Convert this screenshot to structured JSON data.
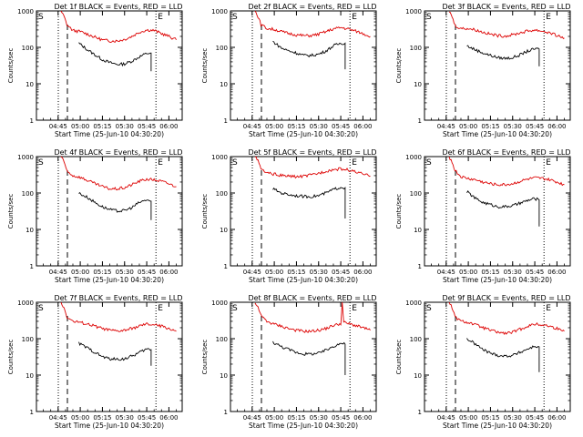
{
  "colors": {
    "events": "#000000",
    "lld": "#dd0000",
    "axis": "#000000",
    "background": "#ffffff"
  },
  "common": {
    "xlabel": "Start Time (25-Jun-10 04:30:20)",
    "ylabel": "Counts/sec",
    "x_ticks": [
      "04:45",
      "05:00",
      "05:15",
      "05:30",
      "05:45",
      "06:00"
    ],
    "y_ticks": [
      "1",
      "10",
      "100",
      "1000"
    ],
    "markers": [
      "S",
      "E"
    ],
    "y_scale": "log",
    "ylim": [
      1,
      1000
    ]
  },
  "chart_data": [
    {
      "type": "line",
      "title": "Det 1f BLACK = Events, RED = LLD",
      "series": [
        {
          "color": "events",
          "x": [
            "04:59",
            "05:05",
            "05:10",
            "05:15",
            "05:20",
            "05:25",
            "05:30",
            "05:35",
            "05:40",
            "05:45",
            "05:48",
            "05:48"
          ],
          "values": [
            130,
            85,
            62,
            46,
            38,
            34,
            35,
            42,
            55,
            68,
            70,
            22
          ]
        },
        {
          "color": "lld",
          "x": [
            "04:47",
            "04:49",
            "04:51",
            "04:55",
            "05:00",
            "05:05",
            "05:10",
            "05:15",
            "05:20",
            "05:25",
            "05:30",
            "05:35",
            "05:40",
            "05:45",
            "05:50",
            "05:55",
            "06:00",
            "06:05"
          ],
          "values": [
            1000,
            700,
            420,
            290,
            270,
            230,
            190,
            160,
            150,
            150,
            165,
            200,
            260,
            300,
            290,
            240,
            200,
            160
          ]
        }
      ]
    },
    {
      "type": "line",
      "title": "Det 2f BLACK = Events, RED = LLD",
      "series": [
        {
          "color": "events",
          "x": [
            "04:59",
            "05:05",
            "05:10",
            "05:15",
            "05:20",
            "05:25",
            "05:30",
            "05:35",
            "05:40",
            "05:45",
            "05:48",
            "05:48"
          ],
          "values": [
            145,
            95,
            80,
            70,
            60,
            60,
            65,
            80,
            110,
            130,
            130,
            25
          ]
        },
        {
          "color": "lld",
          "x": [
            "04:47",
            "04:49",
            "04:51",
            "04:55",
            "05:00",
            "05:05",
            "05:10",
            "05:15",
            "05:20",
            "05:25",
            "05:30",
            "05:35",
            "05:40",
            "05:45",
            "05:50",
            "05:55",
            "06:00",
            "06:05"
          ],
          "values": [
            1000,
            700,
            420,
            330,
            310,
            270,
            240,
            220,
            210,
            210,
            230,
            270,
            320,
            350,
            320,
            280,
            240,
            200
          ]
        }
      ]
    },
    {
      "type": "line",
      "title": "Det 3f BLACK = Events, RED = LLD",
      "series": [
        {
          "color": "events",
          "x": [
            "04:59",
            "05:05",
            "05:10",
            "05:15",
            "05:20",
            "05:25",
            "05:30",
            "05:35",
            "05:40",
            "05:45",
            "05:48",
            "05:48"
          ],
          "values": [
            110,
            85,
            70,
            60,
            52,
            50,
            52,
            62,
            78,
            90,
            90,
            30
          ]
        },
        {
          "color": "lld",
          "x": [
            "04:47",
            "04:49",
            "04:51",
            "04:55",
            "05:00",
            "05:05",
            "05:10",
            "05:15",
            "05:20",
            "05:25",
            "05:30",
            "05:35",
            "05:40",
            "05:45",
            "05:50",
            "05:55",
            "06:00",
            "06:05"
          ],
          "values": [
            1000,
            700,
            400,
            330,
            330,
            300,
            260,
            230,
            210,
            205,
            220,
            250,
            280,
            300,
            280,
            250,
            210,
            180
          ]
        }
      ]
    },
    {
      "type": "line",
      "title": "Det 4f BLACK = Events, RED = LLD",
      "series": [
        {
          "color": "events",
          "x": [
            "04:59",
            "05:05",
            "05:10",
            "05:15",
            "05:20",
            "05:25",
            "05:30",
            "05:35",
            "05:40",
            "05:45",
            "05:48",
            "05:48"
          ],
          "values": [
            100,
            75,
            55,
            42,
            35,
            32,
            33,
            40,
            55,
            65,
            60,
            18
          ]
        },
        {
          "color": "lld",
          "x": [
            "04:47",
            "04:49",
            "04:51",
            "04:55",
            "05:00",
            "05:05",
            "05:10",
            "05:15",
            "05:20",
            "05:25",
            "05:30",
            "05:35",
            "05:40",
            "05:45",
            "05:50",
            "05:55",
            "06:00",
            "06:05"
          ],
          "values": [
            1000,
            700,
            410,
            300,
            270,
            220,
            180,
            150,
            130,
            130,
            140,
            170,
            210,
            240,
            230,
            210,
            180,
            150
          ]
        }
      ]
    },
    {
      "type": "line",
      "title": "Det 5f BLACK = Events, RED = LLD",
      "series": [
        {
          "color": "events",
          "x": [
            "04:59",
            "05:05",
            "05:10",
            "05:15",
            "05:20",
            "05:25",
            "05:30",
            "05:35",
            "05:40",
            "05:45",
            "05:48",
            "05:48"
          ],
          "values": [
            130,
            100,
            90,
            85,
            80,
            80,
            85,
            100,
            125,
            145,
            140,
            20
          ]
        },
        {
          "color": "lld",
          "x": [
            "04:47",
            "04:49",
            "04:51",
            "04:55",
            "05:00",
            "05:05",
            "05:10",
            "05:15",
            "05:20",
            "05:25",
            "05:30",
            "05:35",
            "05:40",
            "05:45",
            "05:50",
            "05:55",
            "06:00",
            "06:05"
          ],
          "values": [
            1000,
            750,
            460,
            350,
            330,
            300,
            290,
            280,
            290,
            310,
            350,
            400,
            440,
            460,
            430,
            380,
            330,
            290
          ]
        }
      ]
    },
    {
      "type": "line",
      "title": "Det 6f BLACK = Events, RED = LLD",
      "series": [
        {
          "color": "events",
          "x": [
            "04:59",
            "05:05",
            "05:10",
            "05:15",
            "05:20",
            "05:25",
            "05:30",
            "05:35",
            "05:40",
            "05:45",
            "05:48",
            "05:48"
          ],
          "values": [
            110,
            70,
            55,
            48,
            42,
            42,
            45,
            52,
            62,
            70,
            65,
            12
          ]
        },
        {
          "color": "lld",
          "x": [
            "04:47",
            "04:49",
            "04:51",
            "04:55",
            "05:00",
            "05:05",
            "05:10",
            "05:15",
            "05:20",
            "05:25",
            "05:30",
            "05:35",
            "05:40",
            "05:45",
            "05:50",
            "05:55",
            "06:00",
            "06:05"
          ],
          "values": [
            1000,
            700,
            420,
            280,
            250,
            230,
            200,
            180,
            170,
            170,
            180,
            210,
            240,
            260,
            250,
            230,
            200,
            170
          ]
        }
      ]
    },
    {
      "type": "line",
      "title": "Det 7f BLACK = Events, RED = LLD",
      "series": [
        {
          "color": "events",
          "x": [
            "04:59",
            "05:05",
            "05:10",
            "05:15",
            "05:20",
            "05:25",
            "05:30",
            "05:35",
            "05:40",
            "05:45",
            "05:48",
            "05:48"
          ],
          "values": [
            75,
            55,
            42,
            32,
            28,
            27,
            28,
            33,
            42,
            52,
            50,
            18
          ]
        },
        {
          "color": "lld",
          "x": [
            "04:47",
            "04:49",
            "04:51",
            "04:55",
            "05:00",
            "05:05",
            "05:10",
            "05:15",
            "05:20",
            "05:25",
            "05:30",
            "05:35",
            "05:40",
            "05:45",
            "05:50",
            "05:55",
            "06:00",
            "06:05"
          ],
          "values": [
            1000,
            700,
            400,
            300,
            280,
            250,
            220,
            190,
            170,
            160,
            170,
            190,
            220,
            250,
            240,
            220,
            190,
            160
          ]
        }
      ]
    },
    {
      "type": "line",
      "title": "Det 8f BLACK = Events, RED = LLD",
      "series": [
        {
          "color": "events",
          "x": [
            "04:59",
            "05:05",
            "05:10",
            "05:15",
            "05:20",
            "05:25",
            "05:30",
            "05:35",
            "05:40",
            "05:45",
            "05:48",
            "05:48"
          ],
          "values": [
            80,
            60,
            50,
            42,
            38,
            38,
            40,
            48,
            62,
            75,
            70,
            10
          ]
        },
        {
          "color": "lld",
          "x": [
            "04:47",
            "04:49",
            "04:51",
            "04:55",
            "05:00",
            "05:05",
            "05:10",
            "05:15",
            "05:20",
            "05:25",
            "05:30",
            "05:35",
            "05:40",
            "05:45",
            "05:46",
            "05:47",
            "05:50",
            "05:55",
            "06:00",
            "06:05"
          ],
          "values": [
            1000,
            700,
            430,
            300,
            250,
            220,
            190,
            170,
            160,
            160,
            170,
            190,
            230,
            260,
            1000,
            280,
            260,
            230,
            200,
            170
          ]
        }
      ]
    },
    {
      "type": "line",
      "title": "Det 9f BLACK = Events, RED = LLD",
      "series": [
        {
          "color": "events",
          "x": [
            "04:59",
            "05:05",
            "05:10",
            "05:15",
            "05:20",
            "05:25",
            "05:30",
            "05:35",
            "05:40",
            "05:45",
            "05:48",
            "05:48"
          ],
          "values": [
            100,
            70,
            50,
            40,
            35,
            33,
            35,
            42,
            52,
            62,
            60,
            12
          ]
        },
        {
          "color": "lld",
          "x": [
            "04:47",
            "04:49",
            "04:51",
            "04:55",
            "05:00",
            "05:05",
            "05:10",
            "05:15",
            "05:20",
            "05:25",
            "05:30",
            "05:35",
            "05:40",
            "05:45",
            "05:50",
            "05:55",
            "06:00",
            "06:05"
          ],
          "values": [
            1000,
            700,
            400,
            300,
            280,
            240,
            200,
            170,
            150,
            140,
            150,
            180,
            220,
            250,
            240,
            220,
            190,
            160
          ]
        }
      ]
    }
  ]
}
